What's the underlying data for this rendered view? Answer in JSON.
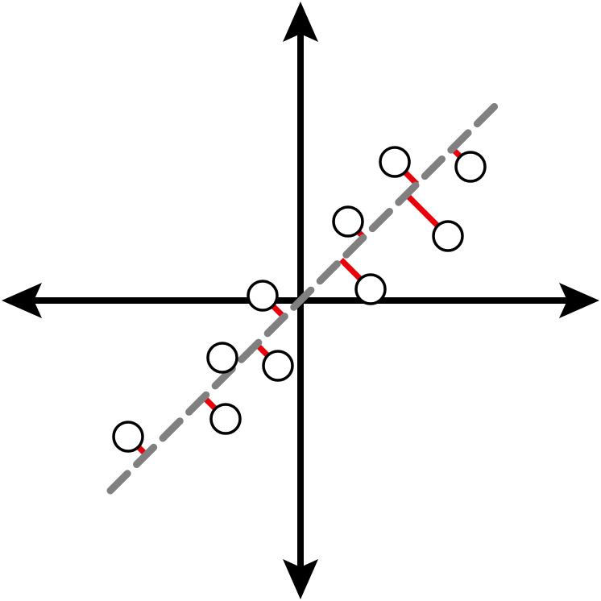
{
  "diagram": {
    "description_free": true,
    "colors": {
      "axes": "#000000",
      "fit_line": "#808080",
      "residual": "#e8000b",
      "point_fill": "#ffffff",
      "point_stroke": "#000000"
    },
    "fit_line": {
      "slope": 1,
      "intercept": 0,
      "x_range": [
        -2.36,
        2.45
      ]
    },
    "points": [
      {
        "x": -2.14,
        "y": -1.69
      },
      {
        "x": -0.93,
        "y": -1.47
      },
      {
        "x": -0.97,
        "y": -0.71
      },
      {
        "x": -0.28,
        "y": -0.81
      },
      {
        "x": -0.47,
        "y": 0.06
      },
      {
        "x": 0.59,
        "y": 0.98
      },
      {
        "x": 0.87,
        "y": 0.14
      },
      {
        "x": 1.17,
        "y": 1.72
      },
      {
        "x": 1.83,
        "y": 0.8
      },
      {
        "x": 2.11,
        "y": 1.66
      }
    ],
    "icons": [
      "arrow-up-icon",
      "arrow-down-icon",
      "arrow-left-icon",
      "arrow-right-icon"
    ]
  }
}
